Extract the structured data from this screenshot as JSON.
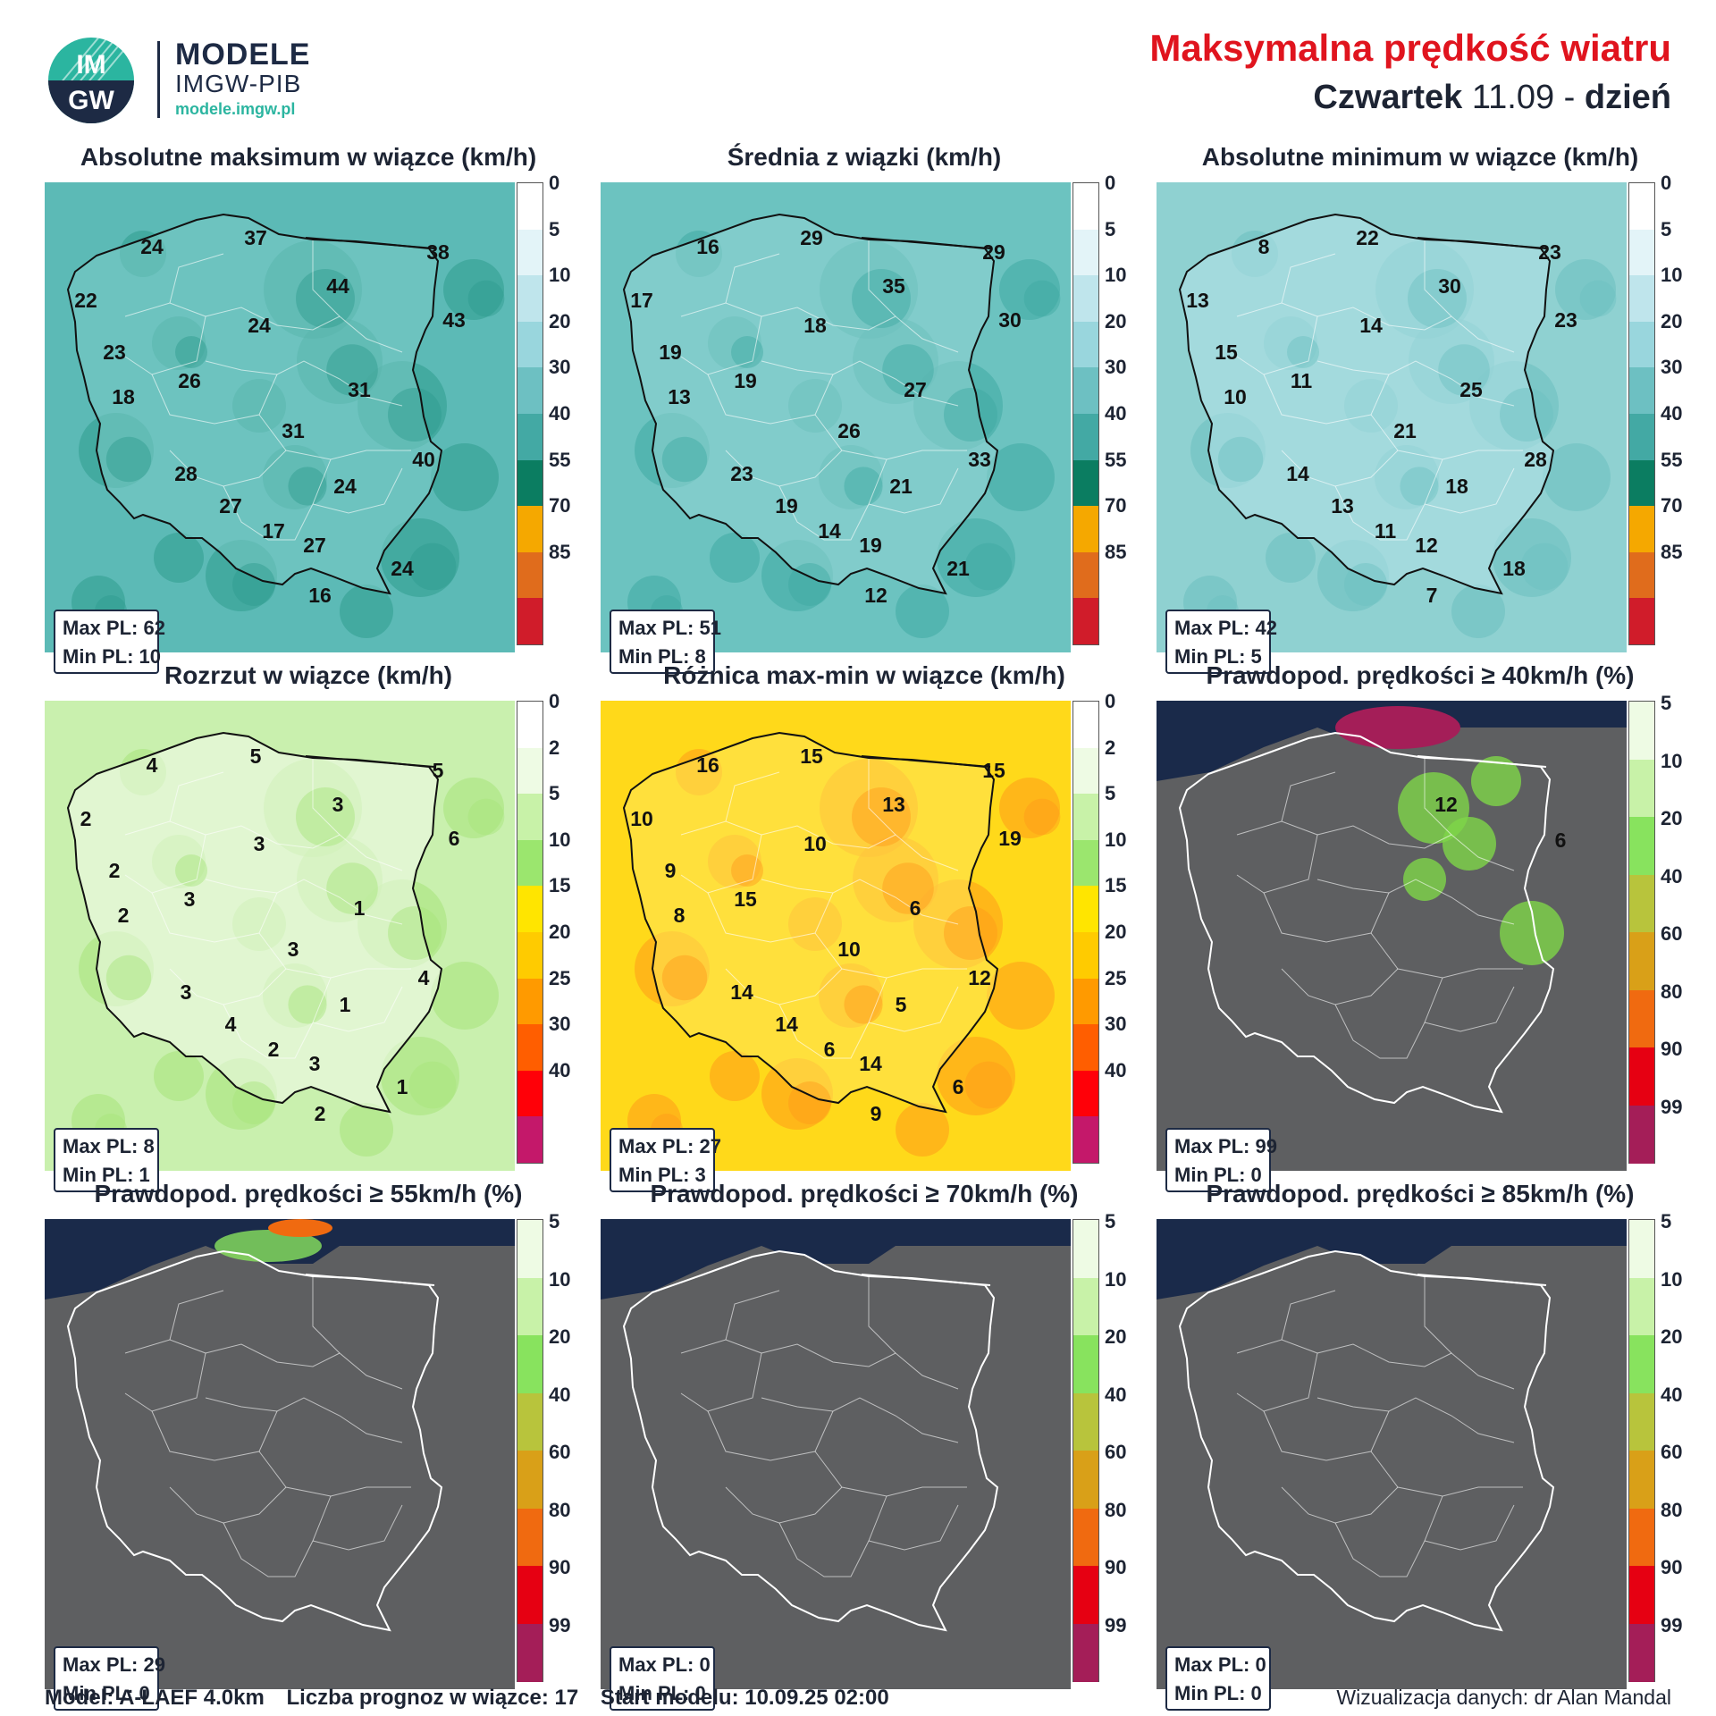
{
  "header": {
    "brand_title": "MODELE",
    "brand_sub": "IMGW-PIB",
    "brand_url": "modele.imgw.pl",
    "logo_text_top": "IM",
    "logo_text_bottom": "GW",
    "title": "Maksymalna prędkość wiatru",
    "day_name": "Czwartek",
    "date": "11.09",
    "separator": "-",
    "day_part": "dzień"
  },
  "colors": {
    "title_red": "#e0141e",
    "navy": "#1d2a44",
    "sea": "#1a2a4a",
    "land_gray": "#5e5f61"
  },
  "colorbars": {
    "speed": {
      "ticks": [
        "0",
        "5",
        "10",
        "20",
        "30",
        "40",
        "55",
        "70",
        "85"
      ],
      "colors": [
        "#ffffff",
        "#e3f4f8",
        "#bfe5ec",
        "#99d6dd",
        "#6dc0c2",
        "#43a9a4",
        "#0b7d61",
        "#f5a800",
        "#e06c1c",
        "#d01c2a"
      ]
    },
    "spread": {
      "ticks": [
        "0",
        "2",
        "5",
        "10",
        "15",
        "20",
        "25",
        "30",
        "40"
      ],
      "colors": [
        "#ffffff",
        "#eefbe4",
        "#c8f2a8",
        "#9be66e",
        "#ffe500",
        "#ffcb00",
        "#ff9a00",
        "#ff5e00",
        "#ff0008",
        "#c4186a"
      ]
    },
    "prob": {
      "ticks": [
        "5",
        "10",
        "20",
        "40",
        "60",
        "80",
        "90",
        "99"
      ],
      "colors": [
        "#eefbe4",
        "#c8f2a8",
        "#88e35e",
        "#b8c43c",
        "#d9a018",
        "#f06a10",
        "#e60012",
        "#a41e58"
      ]
    }
  },
  "panels": [
    {
      "title": "Absolutne maksimum w wiązce (km/h)",
      "scale": "speed",
      "bg": "#5cbab6",
      "blob": "#2f9c8e",
      "land": "#7ccac6",
      "stat_max": "Max PL: 62",
      "stat_min": "Min PL: 10",
      "labels": [
        "24",
        "37",
        "38",
        "22",
        "44",
        "43",
        "23",
        "24",
        "26",
        "18",
        "31",
        "31",
        "40",
        "28",
        "27",
        "24",
        "17",
        "27",
        "24",
        "16"
      ]
    },
    {
      "title": "Średnia z wiązki (km/h)",
      "scale": "speed",
      "bg": "#6cc3c0",
      "blob": "#3fa9a2",
      "land": "#93d4d4",
      "stat_max": "Max PL: 51",
      "stat_min": "Min PL: 8",
      "labels": [
        "16",
        "29",
        "29",
        "17",
        "35",
        "30",
        "19",
        "18",
        "19",
        "13",
        "27",
        "26",
        "33",
        "23",
        "19",
        "21",
        "14",
        "19",
        "21",
        "12"
      ]
    },
    {
      "title": "Absolutne minimum w wiązce (km/h)",
      "scale": "speed",
      "bg": "#8fd1d1",
      "blob": "#6cc0c0",
      "land": "#b4e1e7",
      "stat_max": "Max PL: 42",
      "stat_min": "Min PL: 5",
      "labels": [
        "8",
        "22",
        "23",
        "13",
        "30",
        "23",
        "15",
        "14",
        "11",
        "10",
        "25",
        "21",
        "28",
        "14",
        "13",
        "18",
        "11",
        "12",
        "18",
        "7"
      ]
    },
    {
      "title": "Rozrzut w wiązce (km/h)",
      "scale": "spread",
      "bg": "#c9f0ae",
      "blob": "#a6e47a",
      "land": "#f4fcee",
      "stat_max": "Max PL: 8",
      "stat_min": "Min PL: 1",
      "labels": [
        "4",
        "5",
        "5",
        "2",
        "3",
        "6",
        "2",
        "3",
        "3",
        "2",
        "1",
        "3",
        "4",
        "3",
        "4",
        "1",
        "2",
        "3",
        "1",
        "2"
      ]
    },
    {
      "title": "Różnica max-min w wiązce (km/h)",
      "scale": "spread",
      "bg": "#ffd91a",
      "blob": "#ff9a1a",
      "land": "#ffe65a",
      "stat_max": "Max PL: 27",
      "stat_min": "Min PL: 3",
      "labels": [
        "16",
        "15",
        "15",
        "10",
        "13",
        "19",
        "9",
        "10",
        "15",
        "8",
        "6",
        "10",
        "12",
        "14",
        "14",
        "5",
        "6",
        "14",
        "6",
        "9"
      ]
    },
    {
      "title": "Prawdopod. prędkości ≥ 40km/h (%)",
      "scale": "prob",
      "bg": "#5e5f61",
      "blob": "#7ed648",
      "land": "#5e5f61",
      "stat_max": "Max PL: 99",
      "stat_min": "Min PL: 0",
      "labels": [
        "12",
        "6"
      ]
    },
    {
      "title": "Prawdopod. prędkości ≥ 55km/h (%)",
      "scale": "prob",
      "bg": "#5e5f61",
      "blob": "#5e5f61",
      "land": "#5e5f61",
      "stat_max": "Max PL: 29",
      "stat_min": "Min PL: 0",
      "labels": []
    },
    {
      "title": "Prawdopod. prędkości ≥ 70km/h (%)",
      "scale": "prob",
      "bg": "#5e5f61",
      "blob": "#5e5f61",
      "land": "#5e5f61",
      "stat_max": "Max PL: 0",
      "stat_min": "Min PL: 0",
      "labels": []
    },
    {
      "title": "Prawdopod. prędkości ≥ 85km/h (%)",
      "scale": "prob",
      "bg": "#5e5f61",
      "blob": "#5e5f61",
      "land": "#5e5f61",
      "stat_max": "Max PL: 0",
      "stat_min": "Min PL: 0",
      "labels": []
    }
  ],
  "footer": {
    "model": "Model: A-LAEF 4.0km",
    "ensemble": "Liczba prognoz w wiązce: 17",
    "start": "Start modelu: 10.09.25  02:00",
    "credit": "Wizualizacja danych: dr Alan Mandal"
  }
}
